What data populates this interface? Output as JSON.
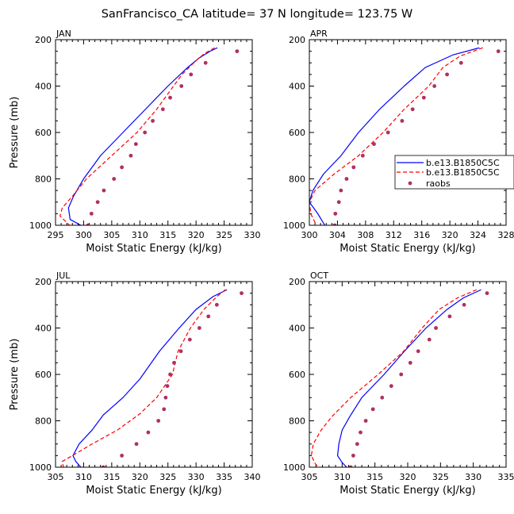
{
  "figure": {
    "title": "SanFrancisco_CA  latitude= 37 N longitude= 123.75 W"
  },
  "legend": {
    "items": [
      {
        "label": "b.e13.B1850C5C",
        "color": "#0000ff",
        "style": "solid"
      },
      {
        "label": "b.e13.B1850C5C",
        "color": "#ff0000",
        "style": "dashed"
      },
      {
        "label": "raobs",
        "color": "#b03060",
        "style": "marker"
      }
    ]
  },
  "chart_data": [
    {
      "type": "line",
      "title": "JAN",
      "xlabel": "Moist Static Energy (kJ/kg)",
      "ylabel": "Pressure (mb)",
      "xlim": [
        295,
        330
      ],
      "xticks": [
        "295",
        "300",
        "305",
        "310",
        "315",
        "320",
        "325",
        "330"
      ],
      "ylim": [
        1000,
        200
      ],
      "yticks": [
        "200",
        "400",
        "600",
        "800",
        "1000"
      ],
      "series": [
        {
          "color": "#0000ff",
          "style": "solid",
          "points": [
            [
              323.8,
              235
            ],
            [
              322.5,
              250
            ],
            [
              320.5,
              280
            ],
            [
              318.5,
              320
            ],
            [
              315,
              400
            ],
            [
              311,
              500
            ],
            [
              307,
              600
            ],
            [
              303,
              700
            ],
            [
              300,
              800
            ],
            [
              298.2,
              875
            ],
            [
              297.3,
              925
            ],
            [
              297.6,
              975
            ],
            [
              299.5,
              1000
            ]
          ]
        },
        {
          "color": "#ff0000",
          "style": "dashed",
          "points": [
            [
              323.3,
              235
            ],
            [
              321.5,
              260
            ],
            [
              320,
              290
            ],
            [
              317.5,
              350
            ],
            [
              316,
              400
            ],
            [
              313,
              500
            ],
            [
              309.5,
              600
            ],
            [
              305,
              700
            ],
            [
              300.5,
              800
            ],
            [
              298,
              875
            ],
            [
              296.2,
              925
            ],
            [
              295.8,
              960
            ],
            [
              297.5,
              1000
            ]
          ]
        },
        {
          "color": "#b03060",
          "style": "marker",
          "points": [
            [
              327.3,
              250
            ],
            [
              321.7,
              300
            ],
            [
              319.1,
              350
            ],
            [
              317.4,
              400
            ],
            [
              315.4,
              450
            ],
            [
              314.1,
              500
            ],
            [
              312.3,
              550
            ],
            [
              310.9,
              600
            ],
            [
              309.3,
              650
            ],
            [
              308.4,
              700
            ],
            [
              306.8,
              750
            ],
            [
              305.4,
              800
            ],
            [
              303.6,
              850
            ],
            [
              302.5,
              900
            ],
            [
              301.4,
              950
            ],
            [
              300.8,
              1000
            ]
          ]
        }
      ]
    },
    {
      "type": "line",
      "title": "APR",
      "xlabel": "Moist Static Energy (kJ/kg)",
      "ylabel": "",
      "xlim": [
        300,
        328
      ],
      "xticks": [
        "300",
        "304",
        "308",
        "312",
        "316",
        "320",
        "324",
        "328"
      ],
      "ylim": [
        1000,
        200
      ],
      "yticks": [
        "200",
        "400",
        "600",
        "800",
        "1000"
      ],
      "series": [
        {
          "color": "#0000ff",
          "style": "solid",
          "points": [
            [
              324.2,
              235
            ],
            [
              320.5,
              265
            ],
            [
              316.5,
              320
            ],
            [
              313.5,
              400
            ],
            [
              310,
              500
            ],
            [
              307,
              600
            ],
            [
              304.5,
              700
            ],
            [
              302,
              780
            ],
            [
              300.5,
              850
            ],
            [
              300,
              900
            ],
            [
              301.2,
              950
            ],
            [
              302.2,
              1000
            ]
          ]
        },
        {
          "color": "#ff0000",
          "style": "dashed",
          "points": [
            [
              324.7,
              235
            ],
            [
              321.5,
              270
            ],
            [
              319,
              320
            ],
            [
              317,
              400
            ],
            [
              313.5,
              500
            ],
            [
              310.5,
              600
            ],
            [
              307,
              700
            ],
            [
              303.5,
              780
            ],
            [
              300.8,
              850
            ],
            [
              300,
              900
            ],
            [
              300.2,
              950
            ],
            [
              301,
              1000
            ]
          ]
        },
        {
          "color": "#b03060",
          "style": "marker",
          "points": [
            [
              326.9,
              250
            ],
            [
              321.6,
              300
            ],
            [
              319.6,
              350
            ],
            [
              317.8,
              400
            ],
            [
              316.3,
              450
            ],
            [
              314.7,
              500
            ],
            [
              313.2,
              550
            ],
            [
              311.2,
              600
            ],
            [
              309.2,
              650
            ],
            [
              307.6,
              700
            ],
            [
              306.3,
              750
            ],
            [
              305.3,
              800
            ],
            [
              304.5,
              850
            ],
            [
              304.2,
              900
            ],
            [
              303.7,
              950
            ],
            [
              303.6,
              1000
            ]
          ]
        }
      ]
    },
    {
      "type": "line",
      "title": "JUL",
      "xlabel": "Moist Static Energy (kJ/kg)",
      "ylabel": "Pressure (mb)",
      "xlim": [
        305,
        340
      ],
      "xticks": [
        "305",
        "310",
        "315",
        "320",
        "325",
        "330",
        "335",
        "340"
      ],
      "ylim": [
        1000,
        200
      ],
      "yticks": [
        "200",
        "400",
        "600",
        "800",
        "1000"
      ],
      "series": [
        {
          "color": "#0000ff",
          "style": "solid",
          "points": [
            [
              335.5,
              235
            ],
            [
              333,
              265
            ],
            [
              330,
              320
            ],
            [
              327,
              400
            ],
            [
              323.5,
              500
            ],
            [
              320,
              620
            ],
            [
              317,
              700
            ],
            [
              313.5,
              775
            ],
            [
              311.5,
              840
            ],
            [
              309.2,
              900
            ],
            [
              308.1,
              950
            ],
            [
              308.6,
              975
            ],
            [
              309.5,
              1000
            ]
          ]
        },
        {
          "color": "#ff0000",
          "style": "dashed",
          "points": [
            [
              335.2,
              235
            ],
            [
              333.7,
              265
            ],
            [
              331.4,
              320
            ],
            [
              329,
              400
            ],
            [
              326.8,
              500
            ],
            [
              325.8,
              600
            ],
            [
              323,
              700
            ],
            [
              320,
              770
            ],
            [
              316,
              840
            ],
            [
              311.5,
              900
            ],
            [
              308,
              950
            ],
            [
              306.2,
              975
            ],
            [
              306.4,
              1000
            ]
          ]
        },
        {
          "color": "#b03060",
          "style": "marker",
          "points": [
            [
              338.1,
              250
            ],
            [
              333.7,
              300
            ],
            [
              332.2,
              350
            ],
            [
              330.6,
              400
            ],
            [
              328.9,
              450
            ],
            [
              327.3,
              500
            ],
            [
              326.1,
              550
            ],
            [
              325.4,
              600
            ],
            [
              324.9,
              650
            ],
            [
              324.6,
              700
            ],
            [
              324.3,
              750
            ],
            [
              323.3,
              800
            ],
            [
              321.5,
              850
            ],
            [
              319.4,
              900
            ],
            [
              316.8,
              950
            ],
            [
              313.5,
              1000
            ]
          ]
        }
      ]
    },
    {
      "type": "line",
      "title": "OCT",
      "xlabel": "Moist Static Energy (kJ/kg)",
      "ylabel": "",
      "xlim": [
        305,
        335
      ],
      "xticks": [
        "305",
        "310",
        "315",
        "320",
        "325",
        "330",
        "335"
      ],
      "ylim": [
        1000,
        200
      ],
      "yticks": [
        "200",
        "400",
        "600",
        "800",
        "1000"
      ],
      "series": [
        {
          "color": "#0000ff",
          "style": "solid",
          "points": [
            [
              331.2,
              235
            ],
            [
              328.5,
              270
            ],
            [
              326,
              320
            ],
            [
              322.8,
              400
            ],
            [
              319.5,
              500
            ],
            [
              316.4,
              600
            ],
            [
              313,
              700
            ],
            [
              311.2,
              780
            ],
            [
              310,
              840
            ],
            [
              309.5,
              900
            ],
            [
              309.3,
              950
            ],
            [
              310,
              980
            ],
            [
              310.7,
              1000
            ]
          ]
        },
        {
          "color": "#ff0000",
          "style": "dashed",
          "points": [
            [
              330.5,
              235
            ],
            [
              327.6,
              270
            ],
            [
              324.8,
              320
            ],
            [
              322.2,
              400
            ],
            [
              319.4,
              500
            ],
            [
              315.5,
              600
            ],
            [
              311.3,
              700
            ],
            [
              308.5,
              780
            ],
            [
              306.8,
              840
            ],
            [
              305.6,
              900
            ],
            [
              305.3,
              950
            ],
            [
              305.9,
              985
            ],
            [
              306.4,
              1000
            ]
          ]
        },
        {
          "color": "#b03060",
          "style": "marker",
          "points": [
            [
              332.1,
              250
            ],
            [
              328.6,
              300
            ],
            [
              326.4,
              350
            ],
            [
              324.3,
              400
            ],
            [
              323.3,
              450
            ],
            [
              321.6,
              500
            ],
            [
              320.4,
              550
            ],
            [
              319,
              600
            ],
            [
              317.5,
              650
            ],
            [
              316.1,
              700
            ],
            [
              314.7,
              750
            ],
            [
              313.6,
              800
            ],
            [
              312.8,
              850
            ],
            [
              312.3,
              900
            ],
            [
              311.7,
              950
            ],
            [
              311.3,
              1000
            ]
          ]
        }
      ]
    }
  ]
}
